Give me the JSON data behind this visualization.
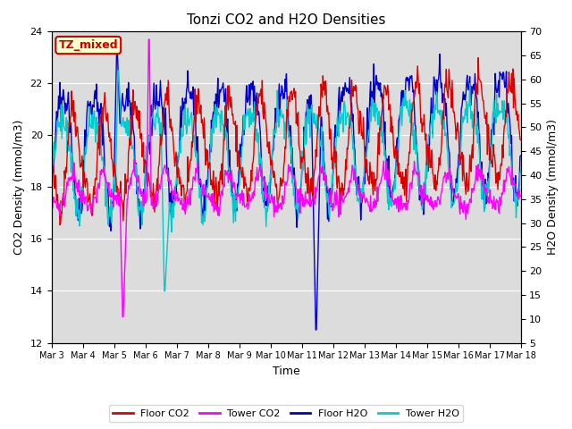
{
  "title": "Tonzi CO2 and H2O Densities",
  "xlabel": "Time",
  "ylabel_left": "CO2 Density (mmol/m3)",
  "ylabel_right": "H2O Density (mmol/m3)",
  "ylim_left": [
    12,
    24
  ],
  "ylim_right": [
    5,
    70
  ],
  "yticks_left": [
    12,
    14,
    16,
    18,
    20,
    22,
    24
  ],
  "yticks_right": [
    5,
    10,
    15,
    20,
    25,
    30,
    35,
    40,
    45,
    50,
    55,
    60,
    65,
    70
  ],
  "xtick_labels": [
    "Mar 3",
    "Mar 4",
    "Mar 5",
    "Mar 6",
    "Mar 7",
    "Mar 8",
    "Mar 9",
    "Mar 10",
    "Mar 11",
    "Mar 12",
    "Mar 13",
    "Mar 14",
    "Mar 15",
    "Mar 16",
    "Mar 17",
    "Mar 18"
  ],
  "colors": {
    "floor_co2": "#dd0000",
    "tower_co2": "#ff00ff",
    "floor_h2o": "#0000cc",
    "tower_h2o": "#00cccc"
  },
  "legend_labels": [
    "Floor CO2",
    "Tower CO2",
    "Floor H2O",
    "Tower H2O"
  ],
  "tz_label": "TZ_mixed",
  "tz_label_color": "#cc0000",
  "tz_bg_color": "#ffffcc",
  "background_color": "#dcdcdc",
  "n_days": 15,
  "seed": 42
}
